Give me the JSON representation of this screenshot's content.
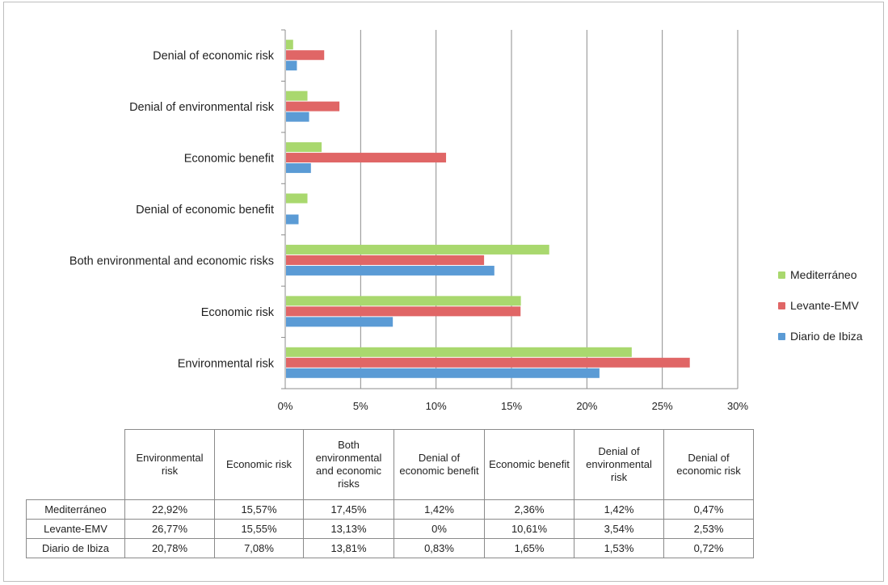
{
  "chart_data": {
    "type": "bar",
    "orientation": "horizontal",
    "categories": [
      "Environmental risk",
      "Economic risk",
      "Both environmental and economic risks",
      "Denial of economic benefit",
      "Economic benefit",
      "Denial of environmental risk",
      "Denial of economic risk"
    ],
    "series": [
      {
        "name": "Diario de Ibiza",
        "color": "#5B9BD5",
        "values": [
          20.78,
          7.08,
          13.81,
          0.83,
          1.65,
          1.53,
          0.72
        ]
      },
      {
        "name": "Levante-EMV",
        "color": "#E06666",
        "values": [
          26.77,
          15.55,
          13.13,
          0,
          10.61,
          3.54,
          2.53
        ]
      },
      {
        "name": "Mediterráneo",
        "color": "#A9D86E",
        "values": [
          22.92,
          15.57,
          17.45,
          1.42,
          2.36,
          1.42,
          0.47
        ]
      }
    ],
    "x_ticks": [
      "0%",
      "5%",
      "10%",
      "15%",
      "20%",
      "25%",
      "30%"
    ],
    "xlim": [
      0,
      30
    ],
    "grid": true,
    "legend_position": "right",
    "legend_order": [
      "Mediterráneo",
      "Levante-EMV",
      "Diario de Ibiza"
    ]
  },
  "data_table": {
    "columns": [
      "Environmental risk",
      "Economic risk",
      "Both environmental and economic risks",
      "Denial of economic benefit",
      "Economic benefit",
      "Denial of environmental risk",
      "Denial of economic risk"
    ],
    "rows": [
      {
        "label": "Mediterráneo",
        "cells": [
          "22,92%",
          "15,57%",
          "17,45%",
          "1,42%",
          "2,36%",
          "1,42%",
          "0,47%"
        ]
      },
      {
        "label": "Levante-EMV",
        "cells": [
          "26,77%",
          "15,55%",
          "13,13%",
          "0%",
          "10,61%",
          "3,54%",
          "2,53%"
        ]
      },
      {
        "label": "Diario de Ibiza",
        "cells": [
          "20,78%",
          "7,08%",
          "13,81%",
          "0,83%",
          "1,65%",
          "1,53%",
          "0,72%"
        ]
      }
    ]
  }
}
